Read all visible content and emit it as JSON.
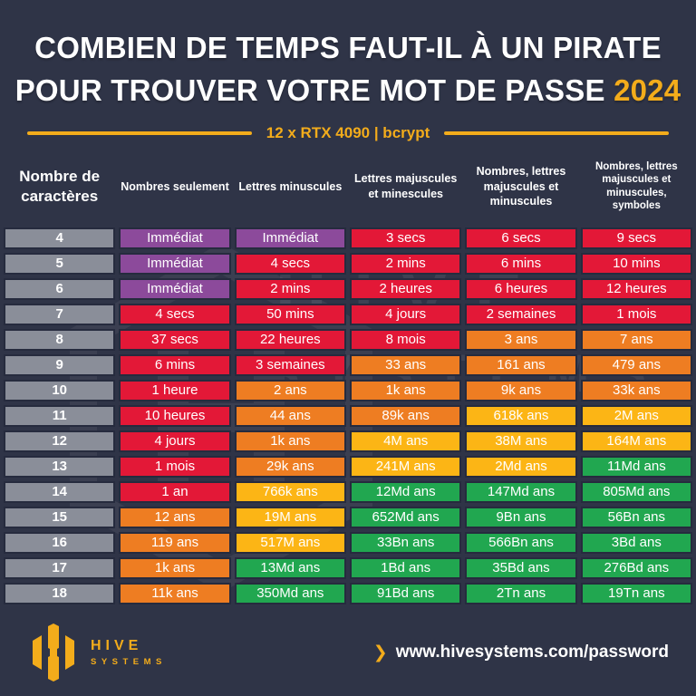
{
  "header": {
    "title_line1": "COMBIEN DE TEMPS FAUT-IL À UN PIRATE",
    "title_line2": "POUR TROUVER VOTRE MOT DE PASSE",
    "year": "2024",
    "subtitle": "12 x RTX 4090 | bcrypt"
  },
  "chart_data": {
    "type": "table",
    "title": "COMBIEN DE TEMPS FAUT-IL À UN PIRATE POUR TROUVER VOTRE MOT DE PASSE 2024",
    "subtitle": "12 x RTX 4090 | bcrypt",
    "row_header": "Nombre de caractères",
    "columns": [
      "Nombres seulement",
      "Lettres minuscules",
      "Lettres majuscules et minescules",
      "Nombres, lettres majuscules et minuscules",
      "Nombres, lettres majuscules et minuscules, symboles"
    ],
    "colors": {
      "purple": "#8C4A9B",
      "red": "#E31837",
      "orange": "#EE7D22",
      "amber": "#FCB515",
      "green": "#21A750",
      "gray": "#8A8E99",
      "accent": "#F3AC1B",
      "background": "#2F3447",
      "cell_border": "#262B3E"
    },
    "rows": [
      {
        "chars": "4",
        "values": [
          "Immédiat",
          "Immédiat",
          "3 secs",
          "6 secs",
          "9 secs"
        ],
        "cell_colors": [
          "purple",
          "purple",
          "red",
          "red",
          "red"
        ]
      },
      {
        "chars": "5",
        "values": [
          "Immédiat",
          "4 secs",
          "2 mins",
          "6 mins",
          "10 mins"
        ],
        "cell_colors": [
          "purple",
          "red",
          "red",
          "red",
          "red"
        ]
      },
      {
        "chars": "6",
        "values": [
          "Immédiat",
          "2 mins",
          "2 heures",
          "6 heures",
          "12 heures"
        ],
        "cell_colors": [
          "purple",
          "red",
          "red",
          "red",
          "red"
        ]
      },
      {
        "chars": "7",
        "values": [
          "4 secs",
          "50 mins",
          "4 jours",
          "2 semaines",
          "1 mois"
        ],
        "cell_colors": [
          "red",
          "red",
          "red",
          "red",
          "red"
        ]
      },
      {
        "chars": "8",
        "values": [
          "37 secs",
          "22 heures",
          "8 mois",
          "3 ans",
          "7 ans"
        ],
        "cell_colors": [
          "red",
          "red",
          "red",
          "orange",
          "orange"
        ]
      },
      {
        "chars": "9",
        "values": [
          "6 mins",
          "3 semaines",
          "33 ans",
          "161 ans",
          "479 ans"
        ],
        "cell_colors": [
          "red",
          "red",
          "orange",
          "orange",
          "orange"
        ]
      },
      {
        "chars": "10",
        "values": [
          "1 heure",
          "2 ans",
          "1k ans",
          "9k ans",
          "33k ans"
        ],
        "cell_colors": [
          "red",
          "orange",
          "orange",
          "orange",
          "orange"
        ]
      },
      {
        "chars": "11",
        "values": [
          "10 heures",
          "44 ans",
          "89k ans",
          "618k ans",
          "2M ans"
        ],
        "cell_colors": [
          "red",
          "orange",
          "orange",
          "amber",
          "amber"
        ]
      },
      {
        "chars": "12",
        "values": [
          "4 jours",
          "1k ans",
          "4M ans",
          "38M ans",
          "164M ans"
        ],
        "cell_colors": [
          "red",
          "orange",
          "amber",
          "amber",
          "amber"
        ]
      },
      {
        "chars": "13",
        "values": [
          "1 mois",
          "29k ans",
          "241M ans",
          "2Md ans",
          "11Md ans"
        ],
        "cell_colors": [
          "red",
          "orange",
          "amber",
          "amber",
          "green"
        ]
      },
      {
        "chars": "14",
        "values": [
          "1 an",
          "766k ans",
          "12Md ans",
          "147Md ans",
          "805Md ans"
        ],
        "cell_colors": [
          "red",
          "amber",
          "green",
          "green",
          "green"
        ]
      },
      {
        "chars": "15",
        "values": [
          "12 ans",
          "19M ans",
          "652Md ans",
          "9Bn ans",
          "56Bn ans"
        ],
        "cell_colors": [
          "orange",
          "amber",
          "green",
          "green",
          "green"
        ]
      },
      {
        "chars": "16",
        "values": [
          "119 ans",
          "517M ans",
          "33Bn ans",
          "566Bn ans",
          "3Bd ans"
        ],
        "cell_colors": [
          "orange",
          "amber",
          "green",
          "green",
          "green"
        ]
      },
      {
        "chars": "17",
        "values": [
          "1k ans",
          "13Md ans",
          "1Bd ans",
          "35Bd ans",
          "276Bd ans"
        ],
        "cell_colors": [
          "orange",
          "green",
          "green",
          "green",
          "green"
        ]
      },
      {
        "chars": "18",
        "values": [
          "11k ans",
          "350Md ans",
          "91Bd ans",
          "2Tn ans",
          "19Tn ans"
        ],
        "cell_colors": [
          "orange",
          "green",
          "green",
          "green",
          "green"
        ]
      }
    ]
  },
  "watermark": {
    "line1": "HIVE",
    "line2": "SYSTEMS"
  },
  "footer": {
    "brand_top": "HIVE",
    "brand_bottom": "SYSTEMS",
    "chevron": "❯",
    "url": "www.hivesystems.com/password"
  }
}
